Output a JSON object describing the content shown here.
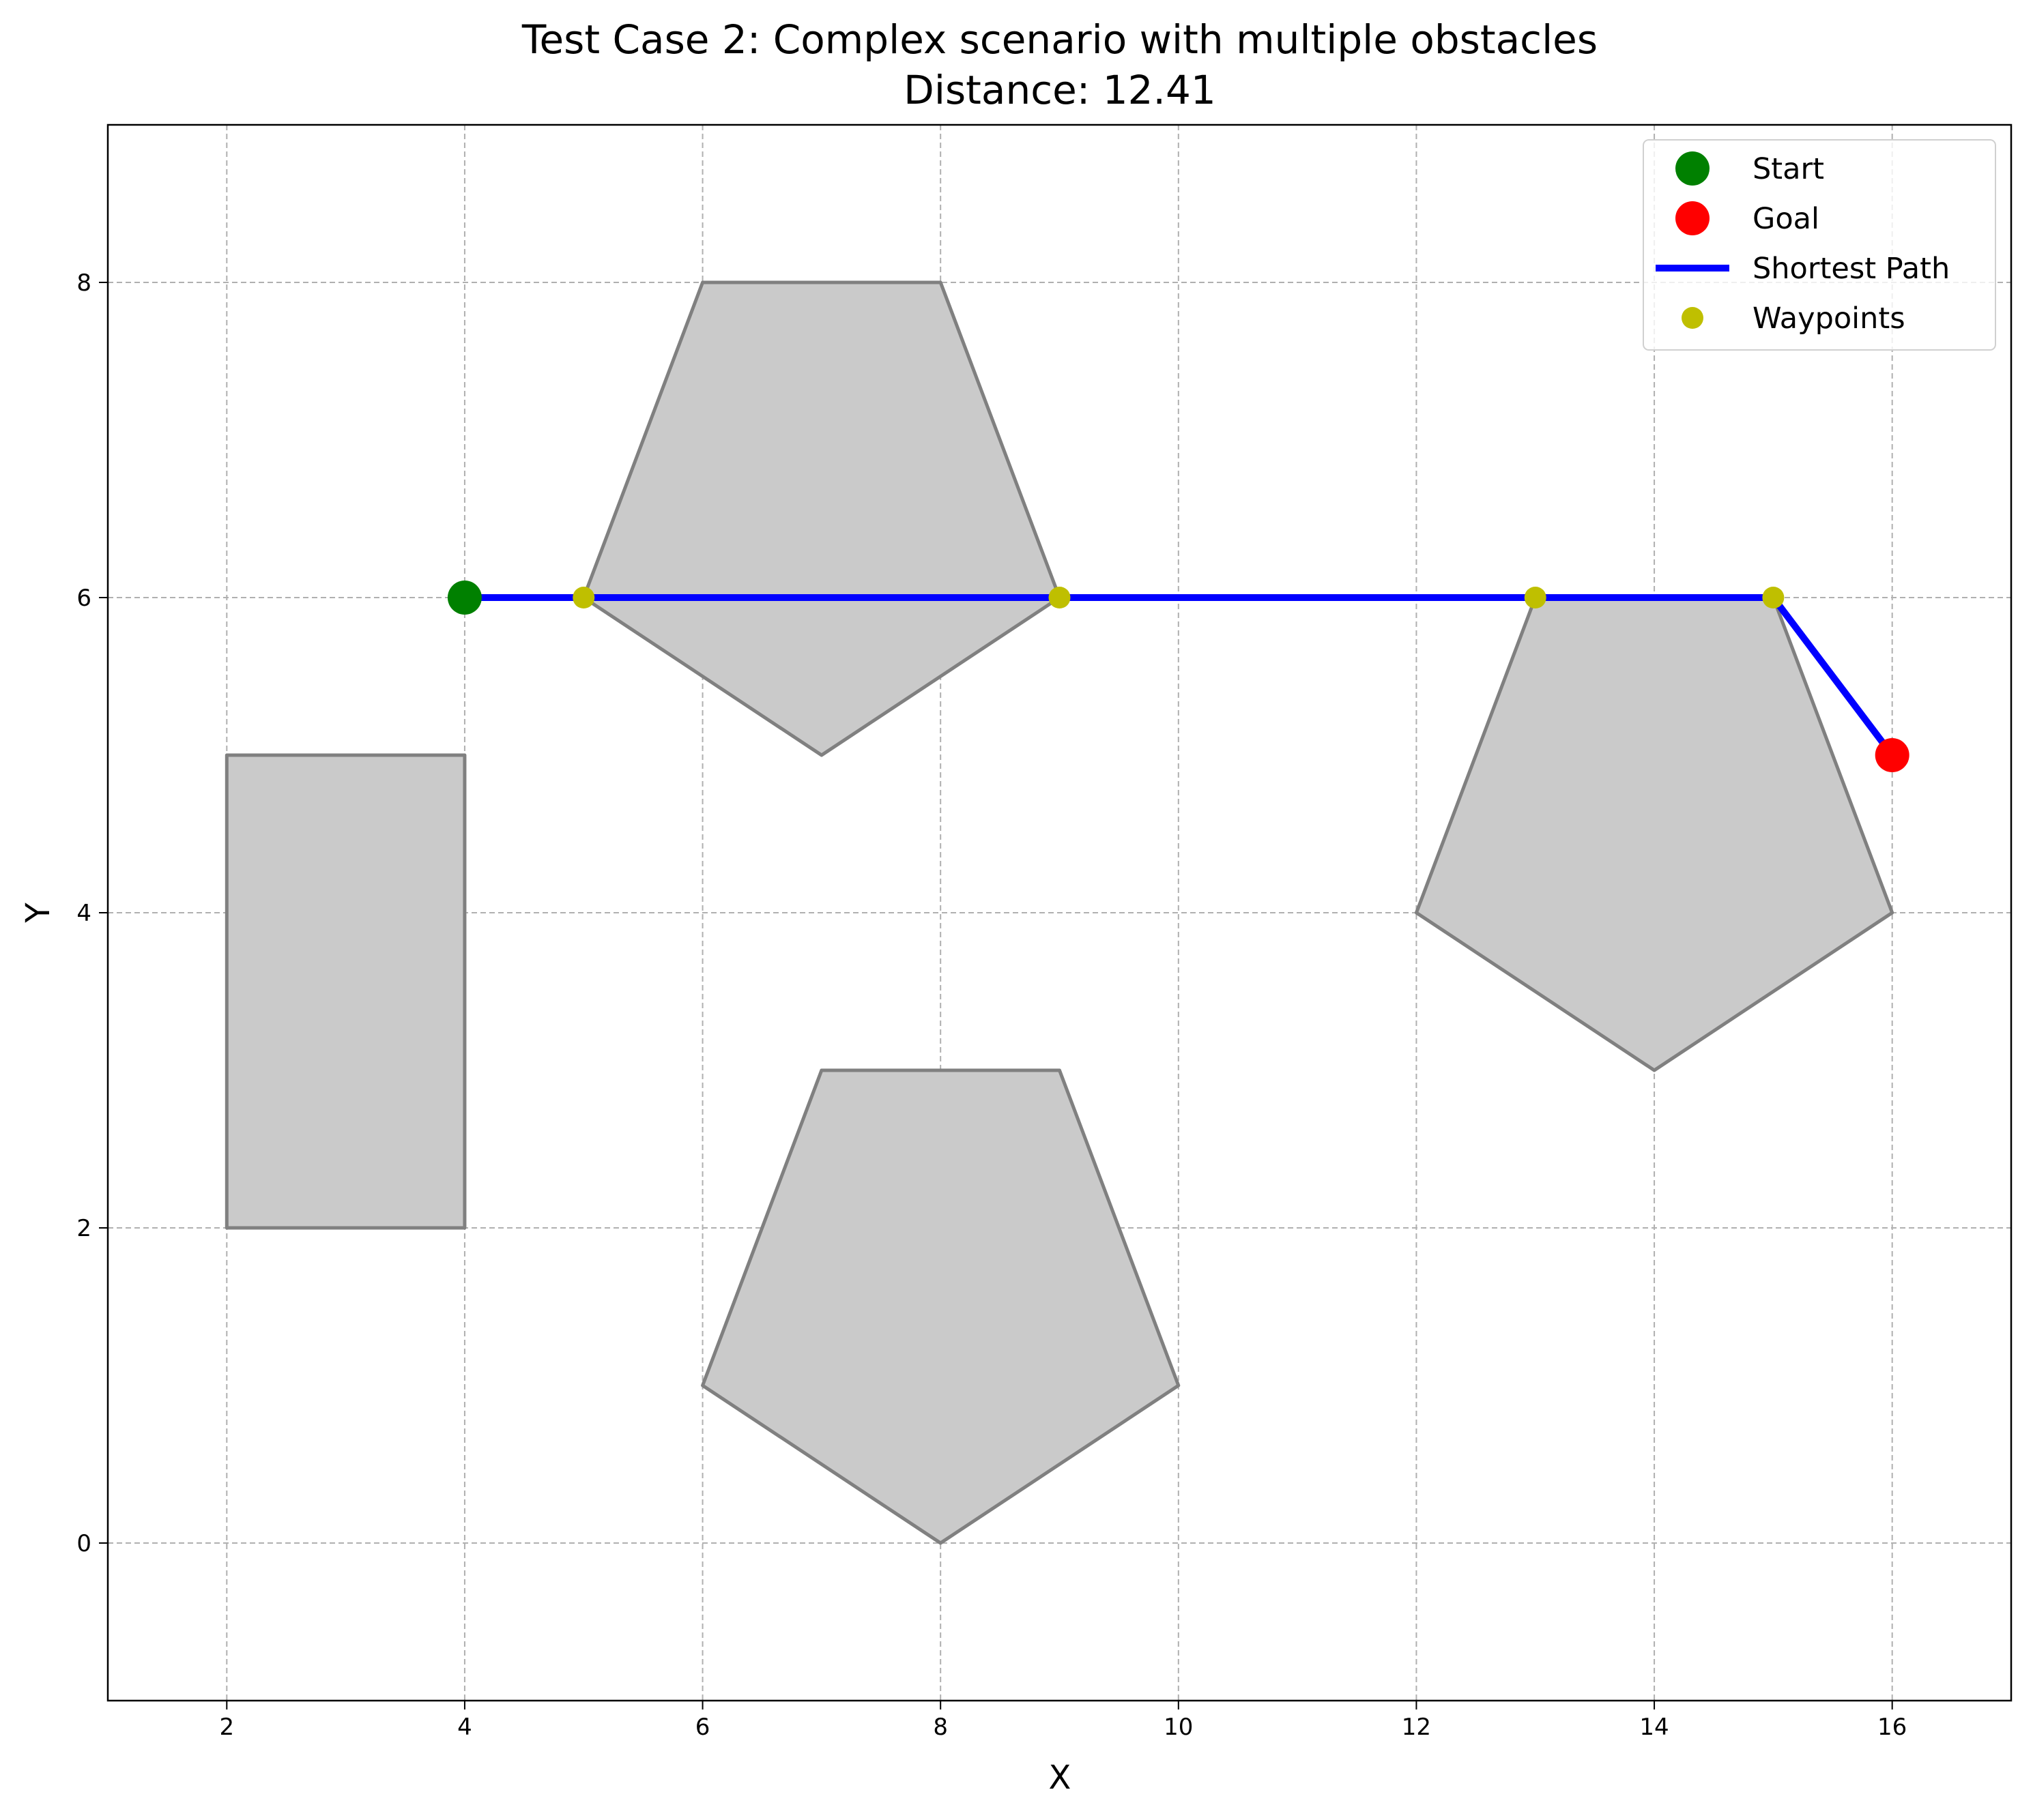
{
  "chart_data": {
    "type": "scatter",
    "title": "Test Case 2: Complex scenario with multiple obstacles",
    "subtitle": "Distance: 12.41",
    "xlabel": "X",
    "ylabel": "Y",
    "xlim": [
      1,
      17
    ],
    "ylim": [
      -1,
      9
    ],
    "xticks": [
      2,
      4,
      6,
      8,
      10,
      12,
      14,
      16
    ],
    "yticks": [
      0,
      2,
      4,
      6,
      8
    ],
    "grid": true,
    "legend_position": "top-right",
    "obstacles": [
      [
        [
          2,
          2
        ],
        [
          4,
          2
        ],
        [
          4,
          5
        ],
        [
          2,
          5
        ]
      ],
      [
        [
          6,
          1
        ],
        [
          7,
          3
        ],
        [
          9,
          3
        ],
        [
          10,
          1
        ],
        [
          8,
          0
        ]
      ],
      [
        [
          5,
          6
        ],
        [
          6,
          8
        ],
        [
          8,
          8
        ],
        [
          9,
          6
        ],
        [
          7,
          5
        ]
      ],
      [
        [
          12,
          4
        ],
        [
          13,
          6
        ],
        [
          15,
          6
        ],
        [
          16,
          4
        ],
        [
          14,
          3
        ]
      ]
    ],
    "series": [
      {
        "name": "Start",
        "kind": "marker",
        "color": "#008000",
        "points": [
          [
            4,
            6
          ]
        ]
      },
      {
        "name": "Goal",
        "kind": "marker",
        "color": "#ff0000",
        "points": [
          [
            16,
            5
          ]
        ]
      },
      {
        "name": "Shortest Path",
        "kind": "line",
        "color": "#0000ff",
        "points": [
          [
            4,
            6
          ],
          [
            5,
            6
          ],
          [
            9,
            6
          ],
          [
            13,
            6
          ],
          [
            15,
            6
          ],
          [
            16,
            5
          ]
        ]
      },
      {
        "name": "Waypoints",
        "kind": "marker",
        "color": "#bfbf00",
        "points": [
          [
            5,
            6
          ],
          [
            9,
            6
          ],
          [
            13,
            6
          ],
          [
            15,
            6
          ]
        ]
      }
    ],
    "colors": {
      "obstacle_fill": "#cacaca",
      "obstacle_edge": "#808080",
      "grid": "#b0b0b0"
    }
  }
}
